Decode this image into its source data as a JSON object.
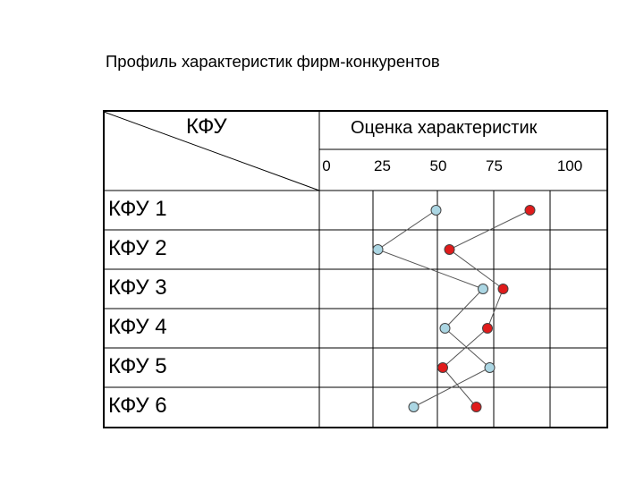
{
  "title": "Профиль характеристик фирм-конкурентов",
  "chart_data": {
    "type": "line",
    "corner_header": "КФУ",
    "score_header": "Оценка характеристик",
    "x_ticks": [
      "0",
      "25",
      "50",
      "75",
      "100"
    ],
    "xlim": [
      0,
      100
    ],
    "categories": [
      "КФУ 1",
      "КФУ 2",
      "КФУ 3",
      "КФУ 4",
      "КФУ 5",
      "КФУ 6"
    ],
    "grid": true,
    "series": [
      {
        "color": "#abd6e3",
        "marker": "circle",
        "values": [
          49,
          23,
          70,
          53,
          73,
          39
        ]
      },
      {
        "color": "#e01b1b",
        "marker": "circle",
        "values": [
          91,
          55,
          79,
          72,
          52,
          67
        ]
      }
    ]
  }
}
